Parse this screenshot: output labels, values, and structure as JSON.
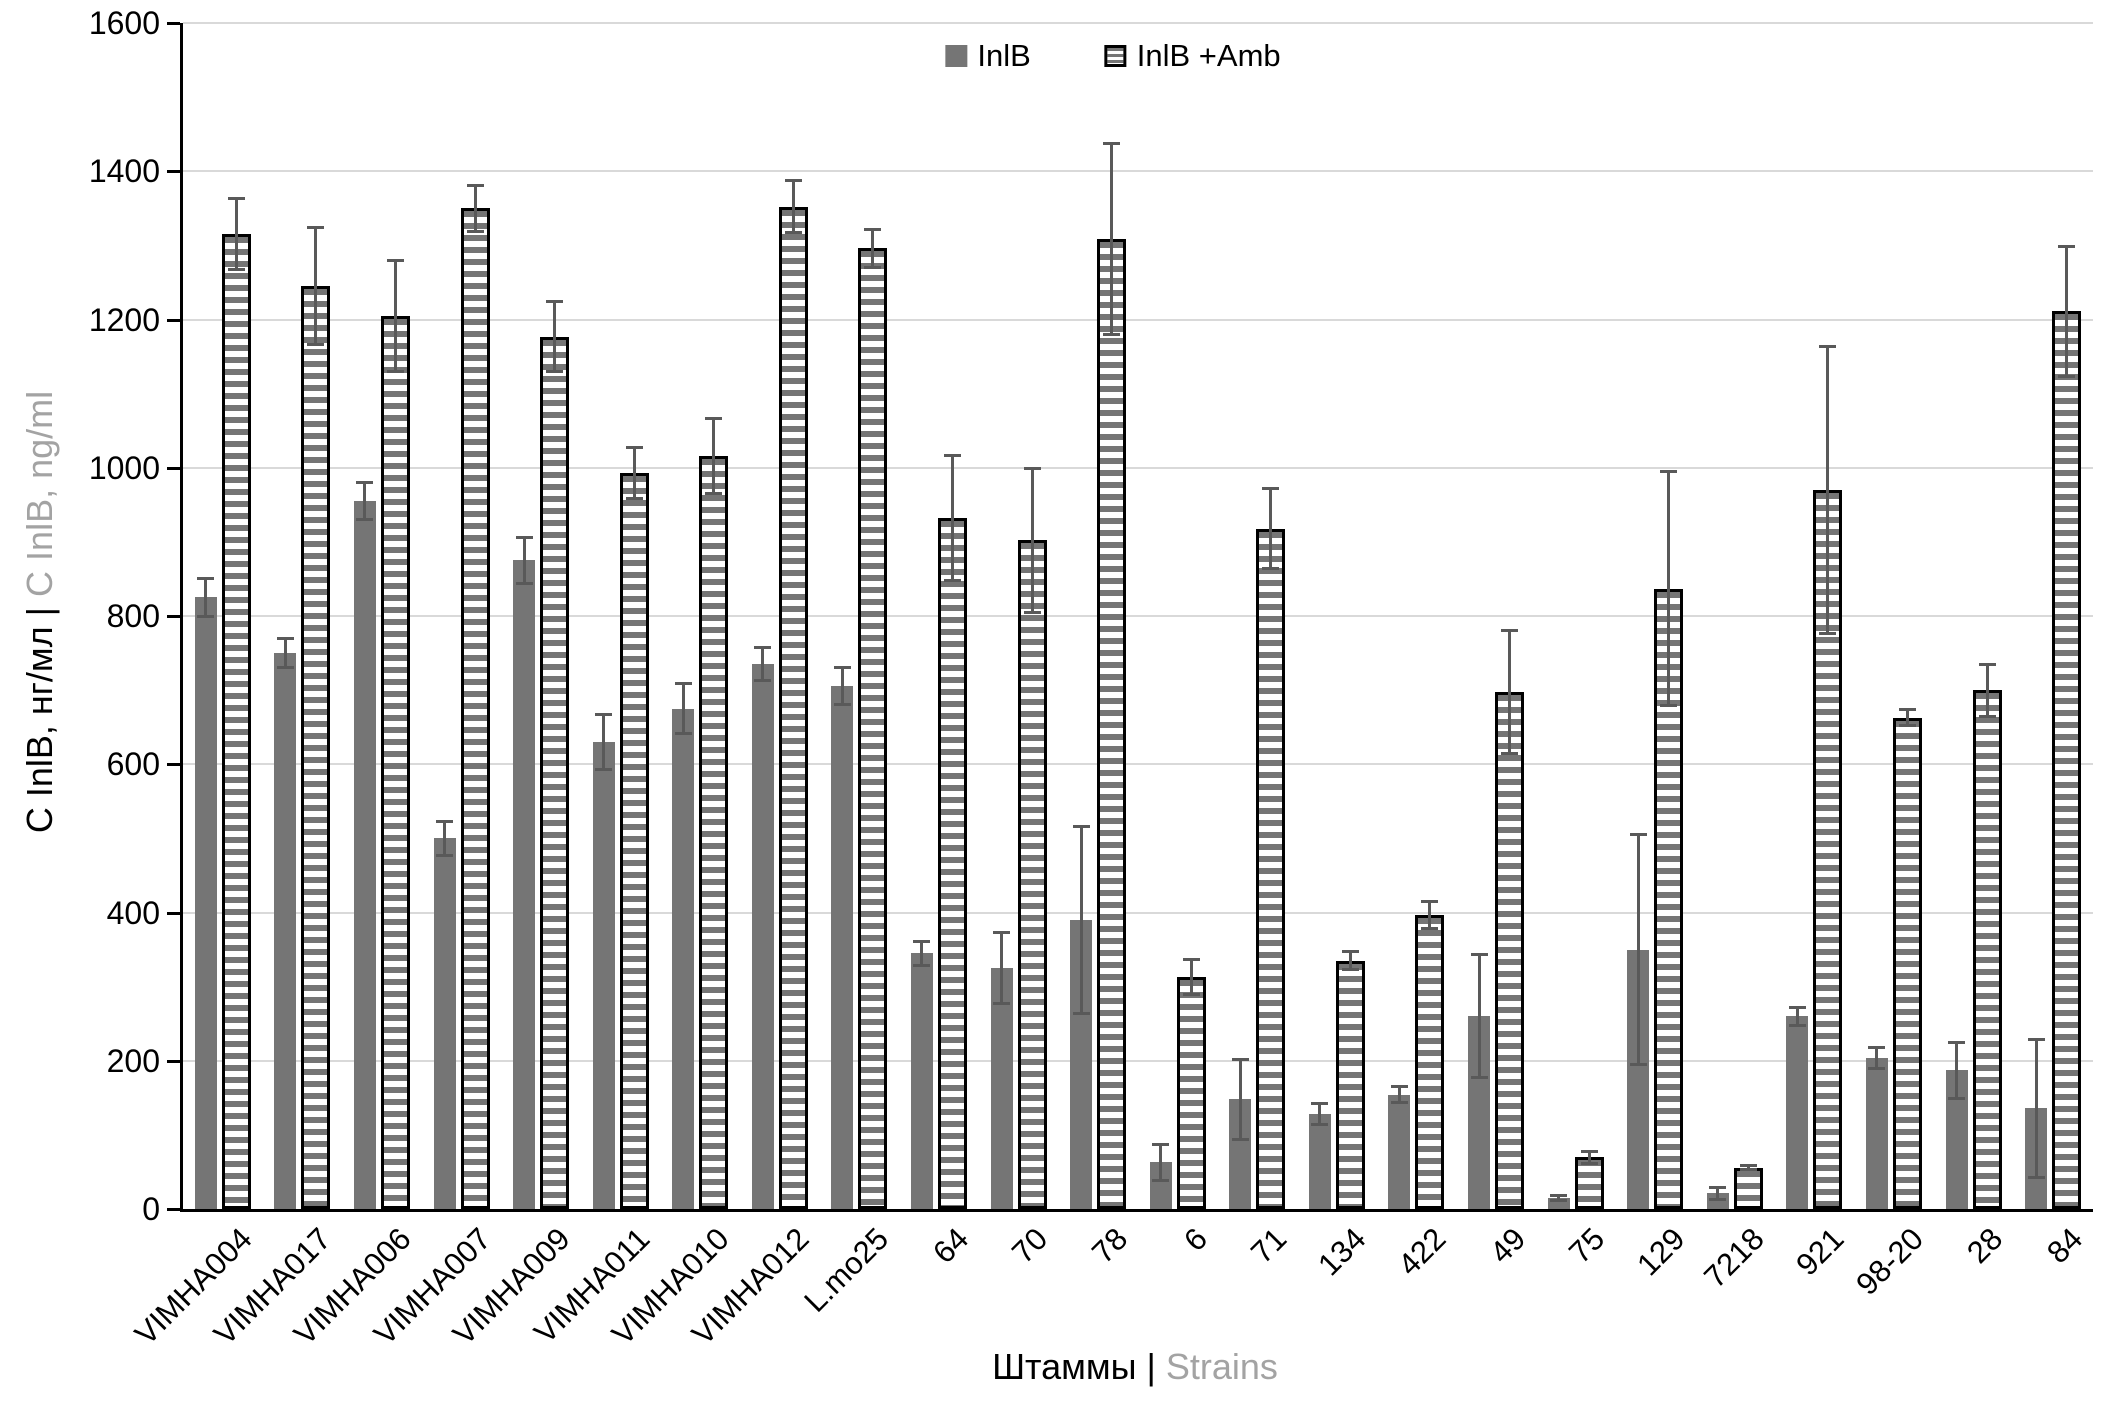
{
  "chart_data": {
    "type": "bar",
    "title": "",
    "xlabel_ru": "Штаммы |",
    "xlabel_en": "Strains",
    "ylabel_ru": "С InlB, нг/мл |",
    "ylabel_en": "C InlB, ng/ml",
    "ylim": [
      0,
      1600
    ],
    "ytick_step": 200,
    "grid": true,
    "legend_position": "top-center",
    "categories": [
      "VIMHA004",
      "VIMHA017",
      "VIMHA006",
      "VIMHA007",
      "VIMHA009",
      "VIMHA011",
      "VIMHA010",
      "VIMHA012",
      "L.mo25",
      "64",
      "70",
      "78",
      "6",
      "71",
      "134",
      "422",
      "49",
      "75",
      "129",
      "7218",
      "921",
      "98-20",
      "28",
      "84"
    ],
    "series": [
      {
        "name": "InlB",
        "style": "solid",
        "values": [
          825,
          750,
          955,
          500,
          875,
          630,
          675,
          735,
          705,
          345,
          325,
          390,
          63,
          148,
          128,
          154,
          260,
          15,
          350,
          21,
          260,
          204,
          187,
          136
        ],
        "errors": [
          28,
          22,
          27,
          25,
          33,
          39,
          36,
          24,
          27,
          18,
          50,
          128,
          26,
          56,
          16,
          13,
          85,
          5,
          157,
          10,
          14,
          16,
          40,
          95
        ]
      },
      {
        "name": "InlB +Amb",
        "style": "hatched",
        "values": [
          1315,
          1245,
          1205,
          1350,
          1177,
          993,
          1016,
          1352,
          1296,
          932,
          902,
          1309,
          313,
          918,
          335,
          397,
          698,
          70,
          837,
          56,
          970,
          663,
          700,
          1211
        ],
        "errors": [
          50,
          81,
          77,
          33,
          49,
          37,
          53,
          37,
          28,
          86,
          99,
          131,
          26,
          56,
          14,
          20,
          85,
          10,
          160,
          5,
          196,
          13,
          37,
          90
        ]
      }
    ],
    "colors": {
      "bar_solid": "#757575",
      "error_bar": "#595959",
      "gridline": "#d9d9d9",
      "axis": "#000000",
      "secondary_text": "#a3a3a3",
      "hatch_background": "#ffffff",
      "hatch_border": "#000000"
    }
  }
}
